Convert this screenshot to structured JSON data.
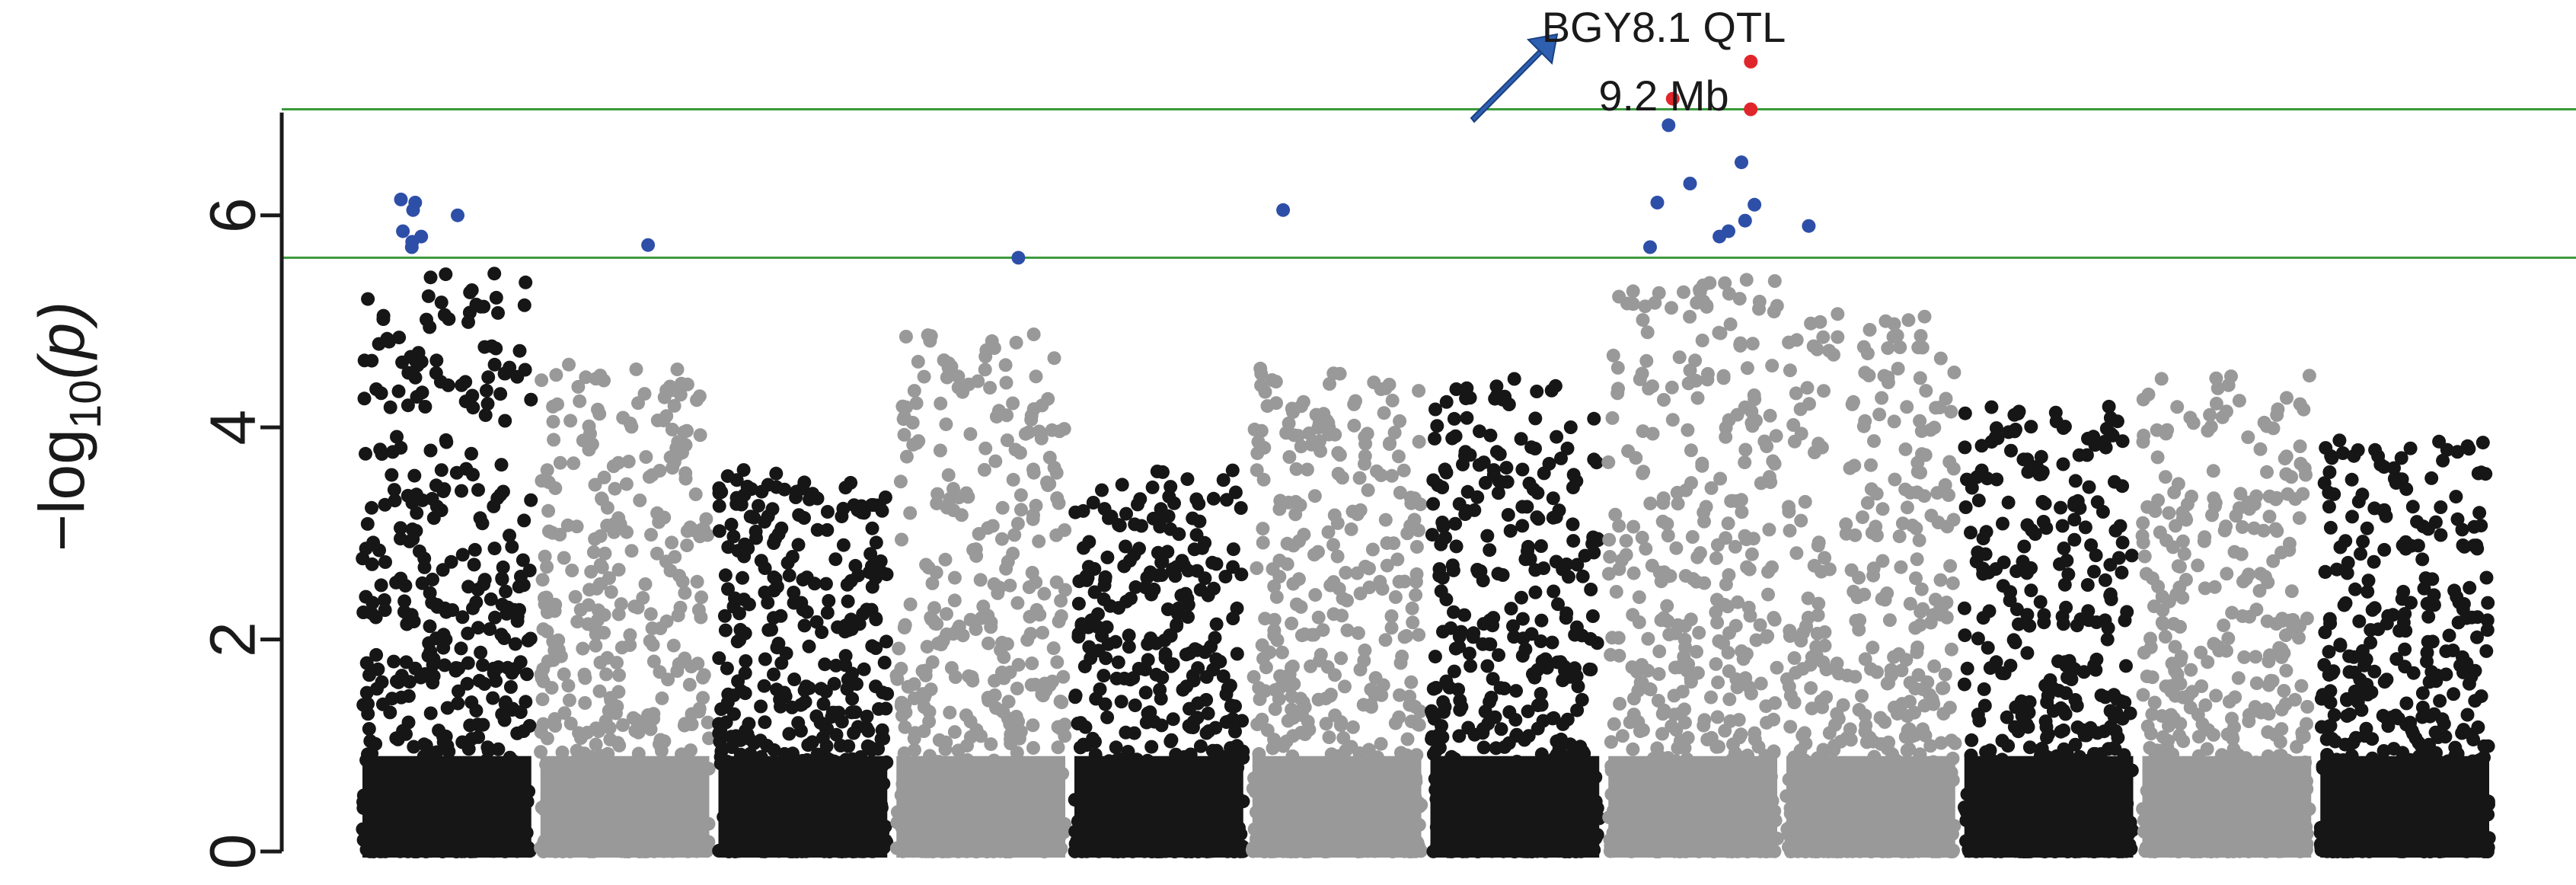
{
  "chart_data": {
    "type": "scatter",
    "title": "",
    "xlabel": "",
    "ylabel": "−log10(p)",
    "ylabel_parts": {
      "prefix": "−log",
      "subscript": "10",
      "suffix": "(p)"
    },
    "ylim": [
      0,
      7.6
    ],
    "yticks": [
      0,
      2,
      4,
      6
    ],
    "threshold_lines": [
      {
        "y": 7.0,
        "color": "#3a9a3a"
      },
      {
        "y": 5.6,
        "color": "#3a9a3a"
      }
    ],
    "annotation": {
      "lines": [
        "BGY8.1 QTL",
        "9.2 Mb"
      ],
      "arrow_color": "#2e5fb0"
    },
    "colors": {
      "chrom_a": "#161616",
      "chrom_b": "#999999",
      "suggestive": "#2e4fa8",
      "significant": "#e0262b",
      "threshold": "#3a9a3a"
    },
    "chromosomes": [
      {
        "color": "chrom_a",
        "max": 5.5
      },
      {
        "color": "chrom_b",
        "max": 4.6
      },
      {
        "color": "chrom_a",
        "max": 3.6
      },
      {
        "color": "chrom_b",
        "max": 4.9
      },
      {
        "color": "chrom_a",
        "max": 3.6
      },
      {
        "color": "chrom_b",
        "max": 4.6
      },
      {
        "color": "chrom_a",
        "max": 4.5
      },
      {
        "color": "chrom_b",
        "max": 5.4
      },
      {
        "color": "chrom_b",
        "max": 5.1
      },
      {
        "color": "chrom_a",
        "max": 4.2
      },
      {
        "color": "chrom_b",
        "max": 4.5
      },
      {
        "color": "chrom_a",
        "max": 3.9
      }
    ],
    "highlighted_points": {
      "significant": [
        {
          "chrom": 8,
          "y": 7.45
        },
        {
          "chrom": 8,
          "y": 7.1
        },
        {
          "chrom": 8,
          "y": 7.0
        }
      ],
      "suggestive": [
        {
          "chrom": 1,
          "y": 6.15
        },
        {
          "chrom": 1,
          "y": 6.05
        },
        {
          "chrom": 1,
          "y": 5.8
        },
        {
          "chrom": 1,
          "y": 5.75
        },
        {
          "chrom": 1,
          "y": 6.12
        },
        {
          "chrom": 1,
          "y": 6.0
        },
        {
          "chrom": 1,
          "y": 5.85
        },
        {
          "chrom": 1,
          "y": 5.7
        },
        {
          "chrom": 2,
          "y": 5.72
        },
        {
          "chrom": 4,
          "y": 5.6
        },
        {
          "chrom": 6,
          "y": 6.05
        },
        {
          "chrom": 8,
          "y": 6.85
        },
        {
          "chrom": 8,
          "y": 6.5
        },
        {
          "chrom": 8,
          "y": 6.3
        },
        {
          "chrom": 8,
          "y": 6.1
        },
        {
          "chrom": 8,
          "y": 5.95
        },
        {
          "chrom": 8,
          "y": 5.8
        },
        {
          "chrom": 8,
          "y": 5.7
        },
        {
          "chrom": 8,
          "y": 6.12
        },
        {
          "chrom": 8,
          "y": 5.85
        },
        {
          "chrom": 9,
          "y": 5.9
        }
      ]
    }
  }
}
